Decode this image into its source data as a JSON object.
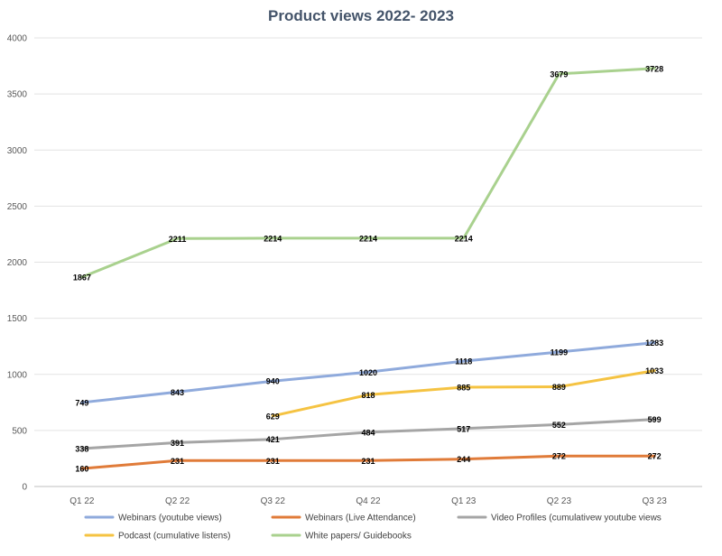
{
  "chart_data": {
    "type": "line",
    "title": "Product views 2022- 2023",
    "xlabel": "",
    "ylabel": "",
    "categories": [
      "Q1 22",
      "Q2 22",
      "Q3 22",
      "Q4 22",
      "Q1 23",
      "Q2 23",
      "Q3 23"
    ],
    "ylim": [
      0,
      4000
    ],
    "yticks": [
      0,
      500,
      1000,
      1500,
      2000,
      2500,
      3000,
      3500,
      4000
    ],
    "grid": true,
    "legend_position": "bottom",
    "series": [
      {
        "name": "Webinars (youtube views)",
        "color": "#8faadc",
        "values": [
          749,
          843,
          940,
          1020,
          1118,
          1199,
          1283
        ]
      },
      {
        "name": "Webinars (Live Attendance)",
        "color": "#e07b39",
        "values": [
          160,
          231,
          231,
          231,
          244,
          272,
          272
        ]
      },
      {
        "name": "Video Profiles (cumulativew youtube views",
        "color": "#a5a5a5",
        "values": [
          338,
          391,
          421,
          484,
          517,
          552,
          599
        ]
      },
      {
        "name": "Podcast (cumulative listens)",
        "color": "#f5c342",
        "values": [
          null,
          null,
          629,
          818,
          885,
          889,
          1033
        ]
      },
      {
        "name": "White papers/ Guidebooks",
        "color": "#a9d18e",
        "values": [
          1867,
          2211,
          2214,
          2214,
          2214,
          3679,
          3728
        ]
      }
    ]
  }
}
